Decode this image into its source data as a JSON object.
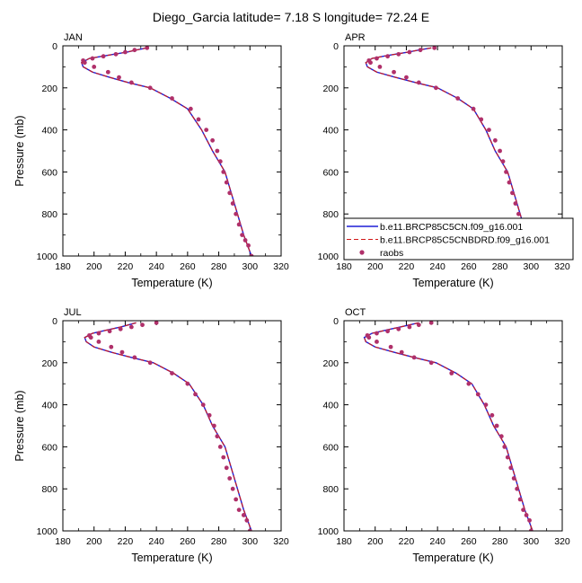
{
  "figure": {
    "title": "Diego_Garcia  latitude= 7.18 S longitude= 72.24 E"
  },
  "colors": {
    "model_solid": "#1f1fd6",
    "model_dashed": "#d01818",
    "raobs": "#b0306a"
  },
  "chart_data": [
    {
      "type": "line",
      "panel": "JAN",
      "xlabel": "Temperature (K)",
      "ylabel": "Pressure (mb)",
      "xlim": [
        180,
        320
      ],
      "ylim": [
        1000,
        0
      ],
      "y_axis_inverted": true,
      "xticks": [
        180,
        200,
        220,
        240,
        260,
        280,
        300,
        320
      ],
      "yticks": [
        0,
        200,
        400,
        600,
        800,
        1000
      ],
      "series": [
        {
          "name": "b.e11.BRCP85C5CN.f09_g16.001",
          "style": "solid",
          "x": [
            234,
            227,
            221,
            213,
            205,
            197,
            192,
            193,
            199,
            210,
            222,
            236,
            249,
            260,
            269,
            276,
            280,
            284,
            288,
            292,
            296,
            301
          ],
          "y": [
            10,
            20,
            30,
            40,
            50,
            60,
            80,
            100,
            125,
            150,
            175,
            200,
            250,
            300,
            400,
            500,
            550,
            600,
            700,
            800,
            900,
            1000
          ]
        },
        {
          "name": "b.e11.BRCP85C5CNBDRD.f09_g16.001",
          "style": "dashed",
          "x": [
            234,
            227,
            221,
            213,
            205,
            197,
            192,
            193,
            199,
            210,
            222,
            236,
            249,
            260,
            269,
            276,
            280,
            284,
            288,
            292,
            296,
            301
          ],
          "y": [
            10,
            20,
            30,
            40,
            50,
            60,
            80,
            100,
            125,
            150,
            175,
            200,
            250,
            300,
            400,
            500,
            550,
            600,
            700,
            800,
            900,
            1000
          ]
        },
        {
          "name": "raobs",
          "style": "markers",
          "x": [
            234,
            226,
            220,
            214,
            206,
            199,
            193,
            194,
            200,
            209,
            216,
            224,
            236,
            250,
            262,
            267,
            272,
            276,
            279,
            281,
            283,
            285,
            287,
            289,
            291,
            293,
            295,
            297,
            299,
            301
          ],
          "y": [
            10,
            20,
            30,
            40,
            50,
            60,
            70,
            80,
            100,
            125,
            150,
            175,
            200,
            250,
            300,
            350,
            400,
            450,
            500,
            550,
            600,
            650,
            700,
            750,
            800,
            850,
            900,
            925,
            950,
            1000
          ]
        }
      ]
    },
    {
      "type": "line",
      "panel": "APR",
      "xlabel": "Temperature (K)",
      "ylabel": "",
      "xlim": [
        180,
        320
      ],
      "ylim": [
        1000,
        0
      ],
      "y_axis_inverted": true,
      "xticks": [
        180,
        200,
        220,
        240,
        260,
        280,
        300,
        320
      ],
      "yticks": [
        0,
        200,
        400,
        600,
        800,
        1000
      ],
      "series": [
        {
          "name": "b.e11.BRCP85C5CN.f09_g16.001",
          "style": "solid",
          "x": [
            236,
            228,
            221,
            213,
            205,
            198,
            194,
            195,
            201,
            213,
            226,
            240,
            253,
            263,
            271,
            277,
            281,
            285,
            289,
            293,
            297,
            302
          ],
          "y": [
            10,
            20,
            30,
            40,
            50,
            60,
            80,
            100,
            125,
            150,
            175,
            200,
            250,
            300,
            400,
            500,
            550,
            600,
            700,
            800,
            900,
            1000
          ]
        },
        {
          "name": "b.e11.BRCP85C5CNBDRD.f09_g16.001",
          "style": "dashed",
          "x": [
            236,
            228,
            221,
            213,
            205,
            198,
            194,
            195,
            201,
            213,
            226,
            240,
            253,
            263,
            271,
            277,
            281,
            285,
            289,
            293,
            297,
            302
          ],
          "y": [
            10,
            20,
            30,
            40,
            50,
            60,
            80,
            100,
            125,
            150,
            175,
            200,
            250,
            300,
            400,
            500,
            550,
            600,
            700,
            800,
            900,
            1000
          ]
        },
        {
          "name": "raobs",
          "style": "markers",
          "x": [
            238,
            229,
            222,
            215,
            208,
            201,
            196,
            197,
            203,
            212,
            220,
            228,
            239,
            253,
            263,
            268,
            273,
            277,
            280,
            282,
            284,
            286,
            288,
            290,
            292,
            294,
            296,
            298,
            300,
            301
          ],
          "y": [
            10,
            20,
            30,
            40,
            50,
            60,
            70,
            80,
            100,
            125,
            150,
            175,
            200,
            250,
            300,
            350,
            400,
            450,
            500,
            550,
            600,
            650,
            700,
            750,
            800,
            850,
            900,
            925,
            950,
            1000
          ]
        }
      ]
    },
    {
      "type": "line",
      "panel": "JUL",
      "xlabel": "Temperature (K)",
      "ylabel": "Pressure (mb)",
      "xlim": [
        180,
        320
      ],
      "ylim": [
        1000,
        0
      ],
      "y_axis_inverted": true,
      "xticks": [
        180,
        200,
        220,
        240,
        260,
        280,
        300,
        320
      ],
      "yticks": [
        0,
        200,
        400,
        600,
        800,
        1000
      ],
      "series": [
        {
          "name": "b.e11.BRCP85C5CN.f09_g16.001",
          "style": "solid",
          "x": [
            227,
            222,
            217,
            211,
            205,
            199,
            194,
            195,
            200,
            211,
            224,
            238,
            251,
            261,
            270,
            276,
            280,
            284,
            288,
            292,
            296,
            301
          ],
          "y": [
            10,
            20,
            30,
            40,
            50,
            60,
            80,
            100,
            125,
            150,
            175,
            200,
            250,
            300,
            400,
            500,
            550,
            600,
            700,
            800,
            900,
            1000
          ]
        },
        {
          "name": "b.e11.BRCP85C5CNBDRD.f09_g16.001",
          "style": "dashed",
          "x": [
            227,
            222,
            217,
            211,
            205,
            199,
            194,
            195,
            200,
            211,
            224,
            238,
            251,
            261,
            270,
            276,
            280,
            284,
            288,
            292,
            296,
            301
          ],
          "y": [
            10,
            20,
            30,
            40,
            50,
            60,
            80,
            100,
            125,
            150,
            175,
            200,
            250,
            300,
            400,
            500,
            550,
            600,
            700,
            800,
            900,
            1000
          ]
        },
        {
          "name": "raobs",
          "style": "markers",
          "x": [
            240,
            231,
            224,
            217,
            210,
            203,
            197,
            198,
            203,
            211,
            218,
            226,
            236,
            250,
            260,
            265,
            270,
            274,
            277,
            279,
            281,
            283,
            285,
            287,
            289,
            291,
            293,
            296,
            298,
            300
          ],
          "y": [
            10,
            20,
            30,
            40,
            50,
            60,
            70,
            80,
            100,
            125,
            150,
            175,
            200,
            250,
            300,
            350,
            400,
            450,
            500,
            550,
            600,
            650,
            700,
            750,
            800,
            850,
            900,
            925,
            950,
            1000
          ]
        }
      ]
    },
    {
      "type": "line",
      "panel": "OCT",
      "xlabel": "Temperature (K)",
      "ylabel": "",
      "xlim": [
        180,
        320
      ],
      "ylim": [
        1000,
        0
      ],
      "y_axis_inverted": true,
      "xticks": [
        180,
        200,
        220,
        240,
        260,
        280,
        300,
        320
      ],
      "yticks": [
        0,
        200,
        400,
        600,
        800,
        1000
      ],
      "series": [
        {
          "name": "b.e11.BRCP85C5CN.f09_g16.001",
          "style": "solid",
          "x": [
            228,
            222,
            216,
            210,
            204,
            198,
            193,
            194,
            200,
            212,
            225,
            239,
            252,
            262,
            270,
            276,
            280,
            284,
            288,
            292,
            296,
            301
          ],
          "y": [
            10,
            20,
            30,
            40,
            50,
            60,
            80,
            100,
            125,
            150,
            175,
            200,
            250,
            300,
            400,
            500,
            550,
            600,
            700,
            800,
            900,
            1000
          ]
        },
        {
          "name": "b.e11.BRCP85C5CNBDRD.f09_g16.001",
          "style": "dashed",
          "x": [
            228,
            222,
            216,
            210,
            204,
            198,
            193,
            194,
            200,
            212,
            225,
            239,
            252,
            262,
            270,
            276,
            280,
            284,
            288,
            292,
            296,
            301
          ],
          "y": [
            10,
            20,
            30,
            40,
            50,
            60,
            80,
            100,
            125,
            150,
            175,
            200,
            250,
            300,
            400,
            500,
            550,
            600,
            700,
            800,
            900,
            1000
          ]
        },
        {
          "name": "raobs",
          "style": "markers",
          "x": [
            236,
            228,
            222,
            215,
            208,
            201,
            195,
            196,
            201,
            210,
            217,
            225,
            236,
            249,
            260,
            266,
            271,
            275,
            278,
            281,
            283,
            285,
            287,
            289,
            291,
            293,
            295,
            297,
            299,
            300
          ],
          "y": [
            10,
            20,
            30,
            40,
            50,
            60,
            70,
            80,
            100,
            125,
            150,
            175,
            200,
            250,
            300,
            350,
            400,
            450,
            500,
            550,
            600,
            650,
            700,
            750,
            800,
            850,
            900,
            925,
            950,
            1000
          ]
        }
      ]
    }
  ],
  "legend": {
    "panel": "APR",
    "placement": "bottom-right",
    "entries": [
      {
        "label": "b.e11.BRCP85C5CN.f09_g16.001",
        "style": "solid"
      },
      {
        "label": "b.e11.BRCP85C5CNBDRD.f09_g16.001",
        "style": "dashed"
      },
      {
        "label": "raobs",
        "style": "markers"
      }
    ]
  }
}
